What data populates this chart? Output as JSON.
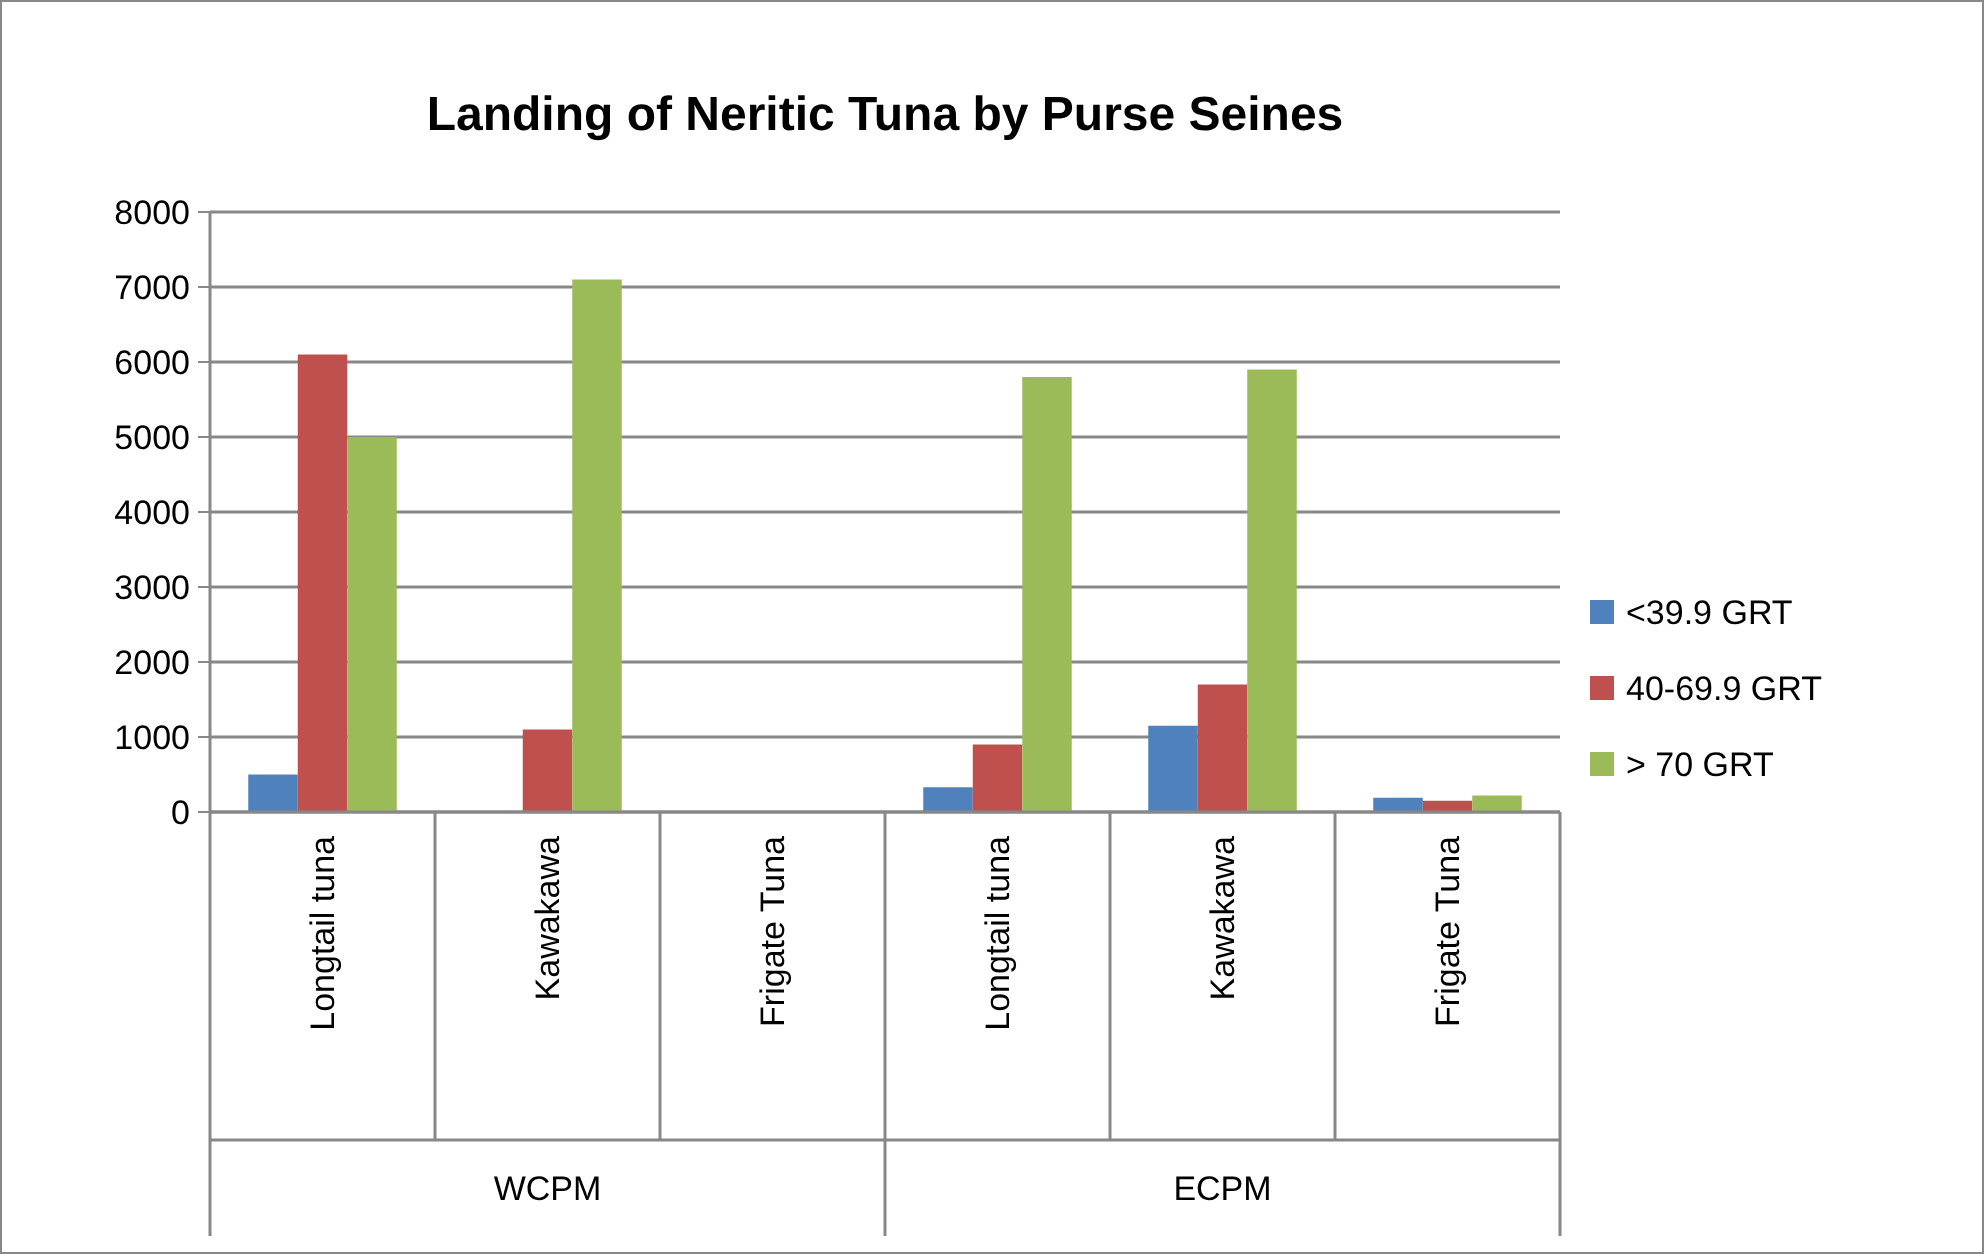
{
  "chart_data": {
    "type": "bar",
    "title": "Landing of Neritic Tuna by Purse Seines",
    "categories": [
      "Longtail tuna",
      "Kawakawa",
      "Frigate Tuna",
      "Longtail tuna",
      "Kawakawa",
      "Frigate Tuna"
    ],
    "annotations": [
      "WCPM",
      "ECPM"
    ],
    "series": [
      {
        "name": "<39.9 GRT",
        "color": "#4f81bd",
        "values": [
          500,
          null,
          null,
          330,
          1150,
          190
        ]
      },
      {
        "name": "40-69.9 GRT",
        "color": "#c0504d",
        "values": [
          6100,
          1100,
          null,
          900,
          1700,
          150
        ]
      },
      {
        "name": "> 70 GRT",
        "color": "#9bbb59",
        "values": [
          5000,
          7100,
          null,
          5800,
          5900,
          220
        ]
      }
    ],
    "ylim": [
      0,
      8000
    ],
    "yticks": [
      0,
      1000,
      2000,
      3000,
      4000,
      5000,
      6000,
      7000,
      8000
    ],
    "grid": "y",
    "legend": "right"
  }
}
